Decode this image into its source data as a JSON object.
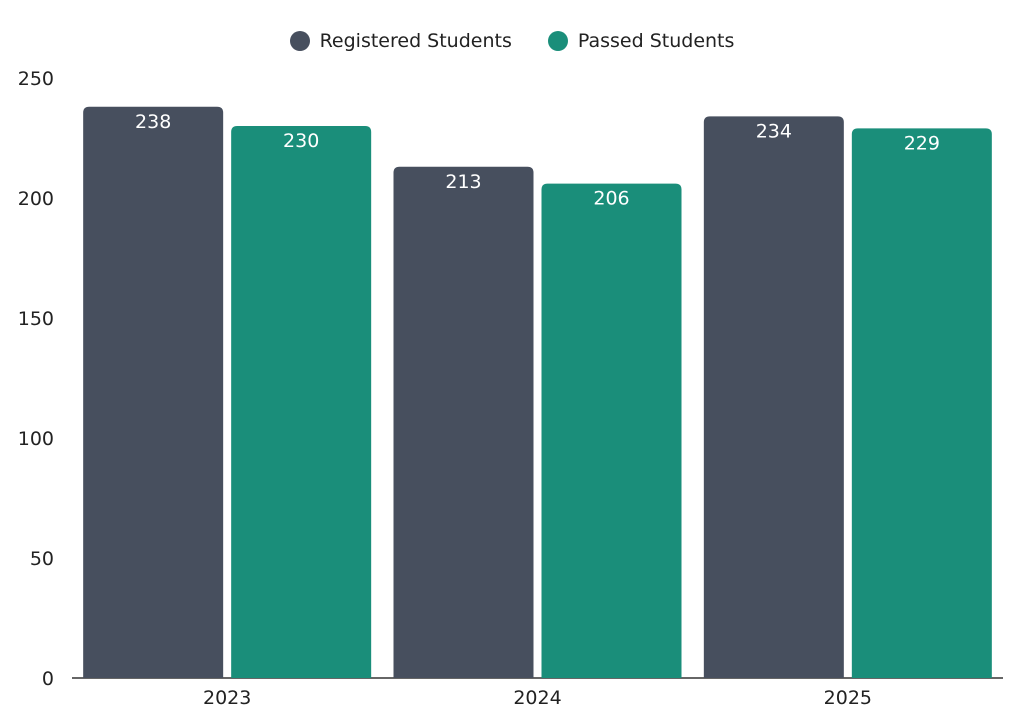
{
  "legend": {
    "registered": "Registered Students",
    "passed": "Passed Students"
  },
  "colors": {
    "registered": "#474f5e",
    "passed": "#1a8e7a"
  },
  "chart_data": {
    "type": "bar",
    "categories": [
      "2023",
      "2024",
      "2025"
    ],
    "series": [
      {
        "name": "Registered Students",
        "values": [
          238,
          213,
          234
        ]
      },
      {
        "name": "Passed Students",
        "values": [
          230,
          206,
          229
        ]
      }
    ],
    "ylim": [
      0,
      250
    ],
    "yticks": [
      0,
      50,
      100,
      150,
      200,
      250
    ],
    "grid": false,
    "legend_position": "top-center"
  }
}
